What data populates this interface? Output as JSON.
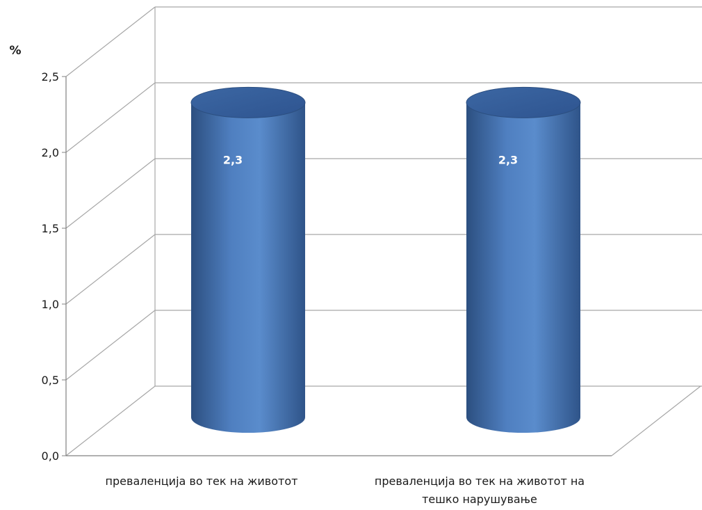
{
  "chart_data": {
    "type": "bar",
    "style": "3d-cylinder",
    "ylabel": "%",
    "ylim": [
      0,
      2.5
    ],
    "yticks": [
      "0,0",
      "0,5",
      "1,0",
      "1,5",
      "2,0",
      "2,5"
    ],
    "categories": [
      [
        "преваленција во тек на животот"
      ],
      [
        "преваленција во тек на животот на",
        "тешко нарушување"
      ]
    ],
    "values": [
      2.3,
      2.3
    ],
    "data_labels": [
      "2,3",
      "2,3"
    ],
    "grid": true,
    "bar_color": "#4a78b8",
    "bar_edge_color": "#2c4f80",
    "gridline_color": "#a6a6a6"
  }
}
